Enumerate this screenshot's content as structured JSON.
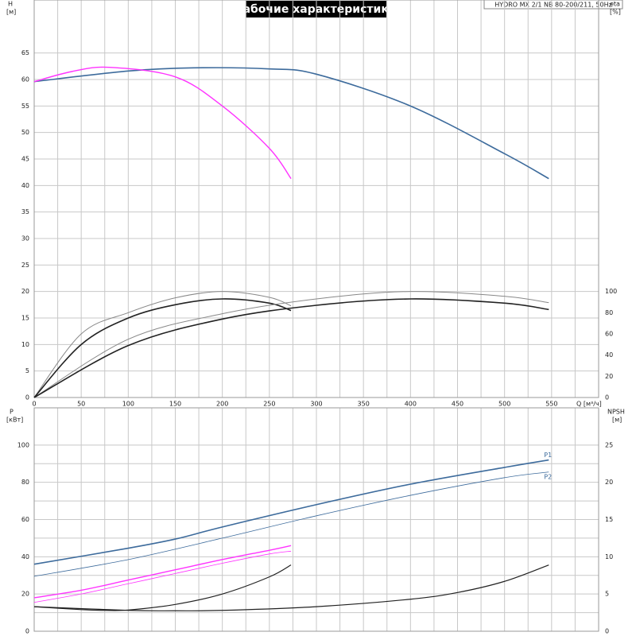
{
  "chart_data": [
    {
      "type": "line",
      "title": "Рабочие характеристики",
      "subtitle": "HYDRO MX 2/1 NB 80-200/211, 50Hz",
      "ylabel": "H",
      "yunit": "[м]",
      "y2label": "eta",
      "y2unit": "[%]",
      "xlabel": "Q [м³/ч]",
      "xlim": [
        0,
        600
      ],
      "xticks": [
        0,
        50,
        100,
        150,
        200,
        250,
        300,
        350,
        400,
        450,
        500,
        550
      ],
      "ylim": [
        0,
        75
      ],
      "yticks": [
        0,
        5,
        10,
        15,
        20,
        25,
        30,
        35,
        40,
        45,
        50,
        55,
        60,
        65
      ],
      "y2lim": [
        0,
        375
      ],
      "y2ticks": [
        0,
        20,
        40,
        60,
        80,
        100
      ],
      "grid": true,
      "series": [
        {
          "color": "#3d6b9c",
          "width": 1.6,
          "x": [
            0,
            100,
            170,
            250,
            300,
            400,
            500,
            547
          ],
          "values": [
            59.6,
            61.6,
            62.2,
            62.0,
            61.0,
            55.0,
            46.0,
            41.3
          ]
        },
        {
          "color": "#ff33ff",
          "width": 1.4,
          "x": [
            0,
            40,
            80,
            150,
            200,
            250,
            273
          ],
          "values": [
            59.6,
            61.5,
            62.3,
            60.5,
            55.0,
            47.0,
            41.3
          ]
        },
        {
          "color": "#888888",
          "width": 1.0,
          "axis": "y2",
          "x": [
            0,
            50,
            100,
            150,
            200,
            250,
            273
          ],
          "values": [
            0,
            60,
            80,
            94,
            100,
            94.5,
            86.5
          ]
        },
        {
          "color": "#222222",
          "width": 1.6,
          "axis": "y2",
          "x": [
            0,
            50,
            100,
            150,
            200,
            250,
            273
          ],
          "values": [
            0,
            50,
            75,
            87.5,
            93,
            89,
            82
          ]
        },
        {
          "color": "#888888",
          "width": 1.0,
          "axis": "y2",
          "x": [
            0,
            100,
            200,
            300,
            400,
            500,
            547
          ],
          "values": [
            0,
            55,
            79,
            93,
            100,
            95.5,
            89.5
          ]
        },
        {
          "color": "#222222",
          "width": 1.6,
          "axis": "y2",
          "x": [
            0,
            100,
            200,
            300,
            400,
            500,
            547
          ],
          "values": [
            0,
            49,
            74,
            87,
            93,
            89,
            83
          ]
        }
      ]
    },
    {
      "type": "line",
      "ylabel": "P",
      "yunit": "[кВт]",
      "y2label": "NPSH",
      "y2unit": "[м]",
      "xlim": [
        0,
        600
      ],
      "ylim": [
        0,
        120
      ],
      "yticks": [
        0,
        20,
        40,
        60,
        80,
        100
      ],
      "y2lim": [
        0,
        30
      ],
      "y2ticks": [
        0,
        5,
        10,
        15,
        20,
        25
      ],
      "grid": true,
      "series": [
        {
          "name": "P1",
          "color": "#3d6b9c",
          "width": 1.6,
          "x": [
            0,
            100,
            150,
            200,
            300,
            400,
            500,
            547
          ],
          "values": [
            36,
            44.6,
            49.5,
            56,
            68,
            79,
            88,
            92
          ]
        },
        {
          "name": "P2",
          "color": "#3d6b9c",
          "width": 0.8,
          "x": [
            0,
            100,
            200,
            300,
            400,
            500,
            547
          ],
          "values": [
            29.5,
            38.5,
            50,
            62,
            73,
            82.5,
            85.5
          ]
        },
        {
          "color": "#ff33ff",
          "width": 1.4,
          "x": [
            0,
            50,
            100,
            150,
            200,
            250,
            273
          ],
          "values": [
            18,
            22,
            27.5,
            33,
            38.5,
            43.5,
            46
          ]
        },
        {
          "color": "#ff33ff",
          "width": 0.8,
          "x": [
            0,
            50,
            100,
            150,
            200,
            250,
            273
          ],
          "values": [
            15.5,
            20,
            25.5,
            31,
            36.5,
            41.5,
            43
          ]
        },
        {
          "color": "#222222",
          "width": 1.2,
          "axis": "y2",
          "x": [
            0,
            100,
            150,
            200,
            300,
            400,
            450,
            500,
            547
          ],
          "values": [
            3.3,
            2.8,
            2.75,
            2.8,
            3.3,
            4.3,
            5.2,
            6.7,
            8.9
          ]
        },
        {
          "color": "#222222",
          "width": 1.2,
          "axis": "y2",
          "x": [
            0,
            50,
            75,
            100,
            150,
            200,
            250,
            273
          ],
          "values": [
            3.3,
            2.9,
            2.8,
            2.85,
            3.6,
            5.0,
            7.3,
            8.9
          ]
        }
      ]
    }
  ]
}
